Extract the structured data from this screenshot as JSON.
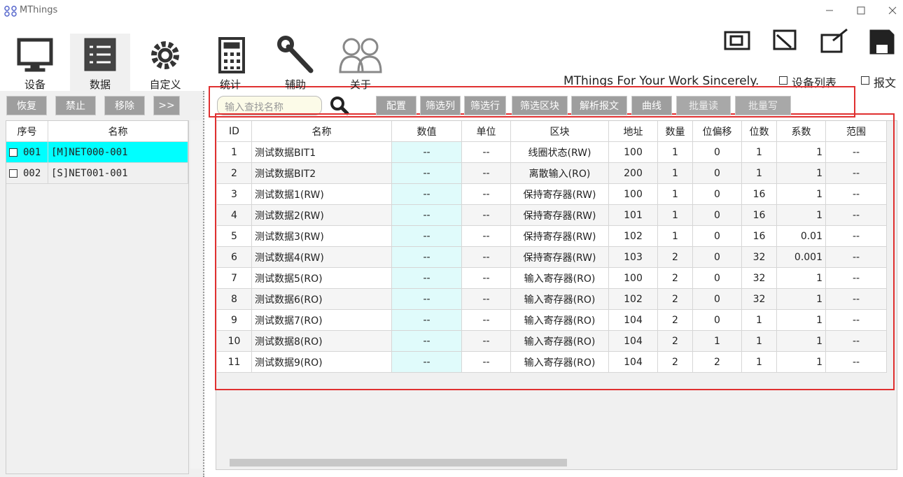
{
  "window": {
    "title": "MThings"
  },
  "nav": [
    "设备",
    "数据",
    "自定义",
    "统计",
    "辅助",
    "关于"
  ],
  "slogan": "MThings For Your Work Sincerely.",
  "checks": [
    "设备列表",
    "报文"
  ],
  "left_buttons": [
    "恢复",
    "禁止",
    "移除",
    ">>"
  ],
  "device_table": {
    "columns": [
      "序号",
      "名称"
    ],
    "rows": [
      [
        "001",
        "[M]NET000-001"
      ],
      [
        "002",
        "[S]NET001-001"
      ]
    ]
  },
  "search_placeholder": "输入查找名称",
  "toolbar": [
    "配置",
    "筛选列",
    "筛选行",
    "筛选区块",
    "解析报文",
    "曲线",
    "批量读",
    "批量写"
  ],
  "data_table": {
    "columns": [
      "ID",
      "名称",
      "数值",
      "单位",
      "区块",
      "地址",
      "数量",
      "位偏移",
      "位数",
      "系数",
      "范围"
    ],
    "rows": [
      [
        "1",
        "测试数据BIT1",
        "--",
        "--",
        "线圈状态(RW)",
        "100",
        "1",
        "0",
        "1",
        "1",
        "--"
      ],
      [
        "2",
        "测试数据BIT2",
        "--",
        "--",
        "离散输入(RO)",
        "200",
        "1",
        "0",
        "1",
        "1",
        "--"
      ],
      [
        "3",
        "测试数据1(RW)",
        "--",
        "--",
        "保持寄存器(RW)",
        "100",
        "1",
        "0",
        "16",
        "1",
        "--"
      ],
      [
        "4",
        "测试数据2(RW)",
        "--",
        "--",
        "保持寄存器(RW)",
        "101",
        "1",
        "0",
        "16",
        "1",
        "--"
      ],
      [
        "5",
        "测试数据3(RW)",
        "--",
        "--",
        "保持寄存器(RW)",
        "102",
        "1",
        "0",
        "16",
        "0.01",
        "--"
      ],
      [
        "6",
        "测试数据4(RW)",
        "--",
        "--",
        "保持寄存器(RW)",
        "103",
        "2",
        "0",
        "32",
        "0.001",
        "--"
      ],
      [
        "7",
        "测试数据5(RO)",
        "--",
        "--",
        "输入寄存器(RO)",
        "100",
        "2",
        "0",
        "32",
        "1",
        "--"
      ],
      [
        "8",
        "测试数据6(RO)",
        "--",
        "--",
        "输入寄存器(RO)",
        "102",
        "2",
        "0",
        "32",
        "1",
        "--"
      ],
      [
        "9",
        "测试数据7(RO)",
        "--",
        "--",
        "输入寄存器(RO)",
        "104",
        "2",
        "0",
        "1",
        "1",
        "--"
      ],
      [
        "10",
        "测试数据8(RO)",
        "--",
        "--",
        "输入寄存器(RO)",
        "104",
        "2",
        "1",
        "1",
        "1",
        "--"
      ],
      [
        "11",
        "测试数据9(RO)",
        "--",
        "--",
        "输入寄存器(RO)",
        "104",
        "2",
        "2",
        "1",
        "1",
        "--"
      ]
    ]
  }
}
